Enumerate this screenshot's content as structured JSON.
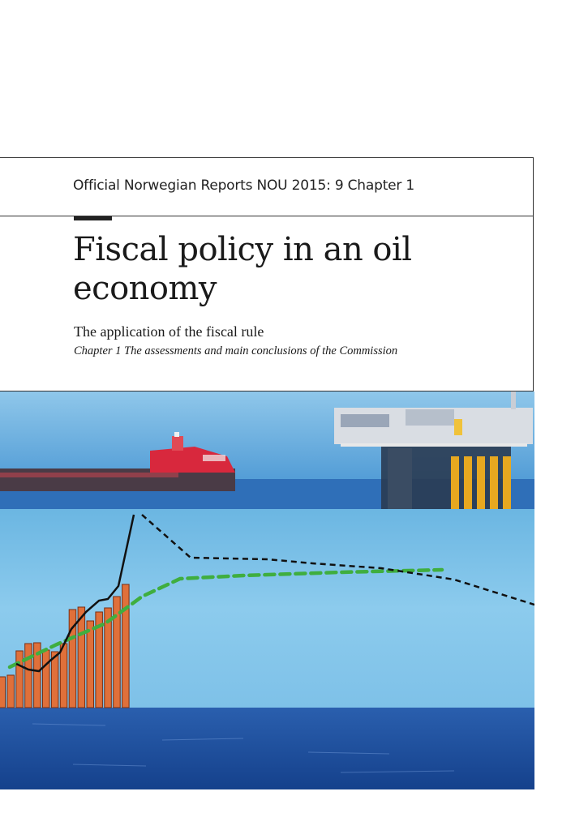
{
  "header": {
    "series_label": "Official Norwegian Reports NOU 2015: 9 Chapter 1"
  },
  "title": {
    "main": "Fiscal policy in an oil economy",
    "subtitle": "The application of the fiscal rule",
    "chapter": "Chapter 1 The assessments and main conclusions of the Commission"
  },
  "cover_image": {
    "description_icons": [
      "tanker-ship-icon",
      "oil-platform-icon"
    ],
    "colors": {
      "sky": "#5ea7d8",
      "sea_band": "#7cc0e6",
      "deep_sea": "#1c4f9e",
      "bars": "#e0703a",
      "actual_line": "#111111",
      "projection_line": "#111111",
      "trend_line": "#3fae3f",
      "ship_hull": "#d8283d"
    }
  },
  "chart_data": {
    "type": "bar",
    "bar_values": [
      38,
      40,
      70,
      79,
      80,
      71,
      69,
      79,
      121,
      124,
      107,
      118,
      123,
      137,
      152
    ],
    "actual_line": [
      54,
      47,
      45,
      58,
      68,
      97,
      118,
      132,
      134,
      150,
      238
    ],
    "projection_line": [
      238,
      185,
      183,
      178,
      172,
      158,
      127
    ],
    "trend_line": [
      50,
      78,
      104,
      137,
      159,
      163,
      167,
      170
    ]
  }
}
